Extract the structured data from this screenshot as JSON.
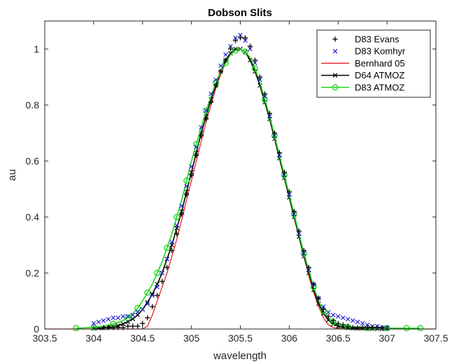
{
  "chart_data": {
    "type": "line",
    "title": "Dobson Slits",
    "xlabel": "wavelength",
    "ylabel": "au",
    "xlim": [
      303.5,
      307.5
    ],
    "ylim": [
      0,
      1.1
    ],
    "xticks": [
      303.5,
      304,
      304.5,
      305,
      305.5,
      306,
      306.5,
      307,
      307.5
    ],
    "xtick_labels": [
      "303.5",
      "304",
      "304.5",
      "305",
      "305.5",
      "306",
      "306.5",
      "307",
      "307.5"
    ],
    "yticks": [
      0,
      0.2,
      0.4,
      0.6,
      0.8,
      1
    ],
    "ytick_labels": [
      "0",
      "0.2",
      "0.4",
      "0.6",
      "0.8",
      "1"
    ],
    "grid": false,
    "legend_position": "top-right",
    "series": [
      {
        "name": "D83 Evans",
        "style": "markers",
        "marker": "plus",
        "color": "#000000",
        "x": [
          304.1,
          304.15,
          304.2,
          304.25,
          304.3,
          304.35,
          304.4,
          304.45,
          304.5,
          304.55,
          304.6,
          304.65,
          304.7,
          304.75,
          304.8,
          304.85,
          304.9,
          304.95,
          305.0,
          305.05,
          305.1,
          305.15,
          305.2,
          305.25,
          305.3,
          305.35,
          305.4,
          305.45,
          305.5,
          305.55,
          305.6,
          305.65,
          305.7,
          305.75,
          305.8,
          305.85,
          305.9,
          305.95,
          306.0,
          306.05,
          306.1,
          306.15,
          306.2,
          306.25,
          306.3,
          306.35,
          306.4,
          306.45,
          306.5,
          306.55,
          306.6,
          306.65,
          306.7,
          306.75,
          306.8,
          306.85,
          306.9,
          306.95
        ],
        "y": [
          0.005,
          0.005,
          0.005,
          0.005,
          0.005,
          0.01,
          0.01,
          0.01,
          0.02,
          0.04,
          0.08,
          0.12,
          0.17,
          0.22,
          0.28,
          0.34,
          0.41,
          0.48,
          0.55,
          0.62,
          0.69,
          0.75,
          0.81,
          0.87,
          0.92,
          0.96,
          1.0,
          1.03,
          1.04,
          1.04,
          1.01,
          0.96,
          0.9,
          0.84,
          0.77,
          0.7,
          0.63,
          0.56,
          0.49,
          0.42,
          0.35,
          0.28,
          0.22,
          0.16,
          0.11,
          0.07,
          0.045,
          0.03,
          0.02,
          0.015,
          0.01,
          0.005,
          0.005,
          0.005,
          0.005,
          0.005,
          0.005,
          0.005
        ]
      },
      {
        "name": "D83 Komhyr",
        "style": "markers",
        "marker": "x",
        "color": "#1f1fd6",
        "x": [
          304.0,
          304.05,
          304.1,
          304.15,
          304.2,
          304.25,
          304.3,
          304.35,
          304.4,
          304.45,
          304.5,
          304.55,
          304.6,
          304.65,
          304.7,
          304.75,
          304.8,
          304.85,
          304.9,
          304.95,
          305.0,
          305.05,
          305.1,
          305.15,
          305.2,
          305.25,
          305.3,
          305.35,
          305.4,
          305.45,
          305.5,
          305.55,
          305.6,
          305.65,
          305.7,
          305.75,
          305.8,
          305.85,
          305.9,
          305.95,
          306.0,
          306.05,
          306.1,
          306.15,
          306.2,
          306.25,
          306.3,
          306.35,
          306.4,
          306.45,
          306.5,
          306.55,
          306.6,
          306.65,
          306.7,
          306.75,
          306.8,
          306.85,
          306.9,
          306.95,
          307.0
        ],
        "y": [
          0.02,
          0.025,
          0.03,
          0.035,
          0.04,
          0.04,
          0.045,
          0.045,
          0.05,
          0.06,
          0.07,
          0.09,
          0.12,
          0.15,
          0.2,
          0.25,
          0.31,
          0.37,
          0.44,
          0.51,
          0.58,
          0.65,
          0.72,
          0.78,
          0.84,
          0.89,
          0.94,
          0.98,
          1.01,
          1.04,
          1.05,
          1.03,
          1.0,
          0.95,
          0.89,
          0.83,
          0.76,
          0.69,
          0.62,
          0.55,
          0.48,
          0.41,
          0.34,
          0.27,
          0.21,
          0.16,
          0.11,
          0.08,
          0.06,
          0.05,
          0.045,
          0.04,
          0.035,
          0.03,
          0.025,
          0.02,
          0.015,
          0.01,
          0.01,
          0.005,
          0.005
        ]
      },
      {
        "name": "Bernhard 05",
        "style": "line",
        "color": "#e8282b",
        "x": [
          303.5,
          304.5,
          304.55,
          304.6,
          304.65,
          304.7,
          304.75,
          304.8,
          304.85,
          304.9,
          304.95,
          305.0,
          305.05,
          305.1,
          305.15,
          305.2,
          305.25,
          305.3,
          305.35,
          305.4,
          305.45,
          305.5,
          305.55,
          305.6,
          305.65,
          305.7,
          305.75,
          305.8,
          305.85,
          305.9,
          305.95,
          306.0,
          306.05,
          306.1,
          306.15,
          306.2,
          306.25,
          306.3,
          306.35,
          306.4,
          306.45,
          306.5,
          306.55,
          307.5
        ],
        "y": [
          0,
          0,
          0.01,
          0.05,
          0.1,
          0.15,
          0.2,
          0.26,
          0.32,
          0.39,
          0.46,
          0.53,
          0.6,
          0.67,
          0.74,
          0.8,
          0.86,
          0.91,
          0.95,
          0.98,
          1.0,
          1.0,
          0.99,
          0.96,
          0.92,
          0.87,
          0.81,
          0.75,
          0.68,
          0.61,
          0.54,
          0.47,
          0.4,
          0.33,
          0.26,
          0.19,
          0.13,
          0.08,
          0.04,
          0.015,
          0.005,
          0.002,
          0,
          0
        ]
      },
      {
        "name": "D64 ATMOZ",
        "style": "line-markers",
        "marker": "x",
        "color": "#000000",
        "x": [
          304.0,
          304.05,
          304.1,
          304.15,
          304.2,
          304.25,
          304.3,
          304.35,
          304.4,
          304.45,
          304.5,
          304.55,
          304.6,
          304.65,
          304.7,
          304.75,
          304.8,
          304.85,
          304.9,
          304.95,
          305.0,
          305.05,
          305.1,
          305.15,
          305.2,
          305.25,
          305.3,
          305.35,
          305.4,
          305.45,
          305.5,
          305.55,
          305.6,
          305.65,
          305.7,
          305.75,
          305.8,
          305.85,
          305.9,
          305.95,
          306.0,
          306.05,
          306.1,
          306.15,
          306.2,
          306.25,
          306.3,
          306.35,
          306.4,
          306.45,
          306.5,
          306.55,
          306.6,
          306.65,
          306.7,
          306.75,
          306.8,
          306.85,
          306.9,
          306.95,
          307.0
        ],
        "y": [
          0.002,
          0.003,
          0.004,
          0.006,
          0.008,
          0.012,
          0.018,
          0.026,
          0.036,
          0.05,
          0.07,
          0.095,
          0.125,
          0.16,
          0.2,
          0.25,
          0.3,
          0.36,
          0.42,
          0.49,
          0.56,
          0.63,
          0.7,
          0.76,
          0.82,
          0.87,
          0.92,
          0.96,
          0.985,
          1.0,
          1.0,
          0.99,
          0.96,
          0.92,
          0.87,
          0.81,
          0.75,
          0.68,
          0.61,
          0.54,
          0.47,
          0.4,
          0.33,
          0.26,
          0.2,
          0.14,
          0.09,
          0.055,
          0.032,
          0.018,
          0.01,
          0.006,
          0.004,
          0.003,
          0.002,
          0.002,
          0.001,
          0.001,
          0.001,
          0.0,
          0.0
        ]
      },
      {
        "name": "D83 ATMOZ",
        "style": "line-markers",
        "marker": "circle",
        "color": "#1fd61f",
        "x": [
          303.82,
          303.9,
          304.0,
          304.1,
          304.2,
          304.3,
          304.35,
          304.4,
          304.45,
          304.5,
          304.55,
          304.6,
          304.65,
          304.7,
          304.75,
          304.8,
          304.85,
          304.9,
          304.95,
          305.0,
          305.05,
          305.1,
          305.15,
          305.2,
          305.25,
          305.3,
          305.35,
          305.4,
          305.45,
          305.5,
          305.55,
          305.6,
          305.65,
          305.7,
          305.75,
          305.8,
          305.85,
          305.9,
          305.95,
          306.0,
          306.05,
          306.1,
          306.15,
          306.2,
          306.25,
          306.3,
          306.35,
          306.4,
          306.45,
          306.5,
          306.6,
          306.7,
          306.8,
          306.9,
          307.0,
          307.1,
          307.2,
          307.34
        ],
        "y": [
          0.003,
          0.004,
          0.006,
          0.01,
          0.018,
          0.03,
          0.04,
          0.055,
          0.075,
          0.1,
          0.13,
          0.16,
          0.2,
          0.24,
          0.29,
          0.34,
          0.4,
          0.46,
          0.53,
          0.6,
          0.66,
          0.72,
          0.78,
          0.83,
          0.88,
          0.92,
          0.95,
          0.98,
          0.995,
          1.0,
          0.99,
          0.97,
          0.93,
          0.88,
          0.82,
          0.76,
          0.69,
          0.62,
          0.55,
          0.48,
          0.41,
          0.34,
          0.27,
          0.21,
          0.15,
          0.1,
          0.065,
          0.04,
          0.025,
          0.015,
          0.008,
          0.005,
          0.004,
          0.003,
          0.003,
          0.003,
          0.003,
          0.003
        ]
      }
    ]
  }
}
